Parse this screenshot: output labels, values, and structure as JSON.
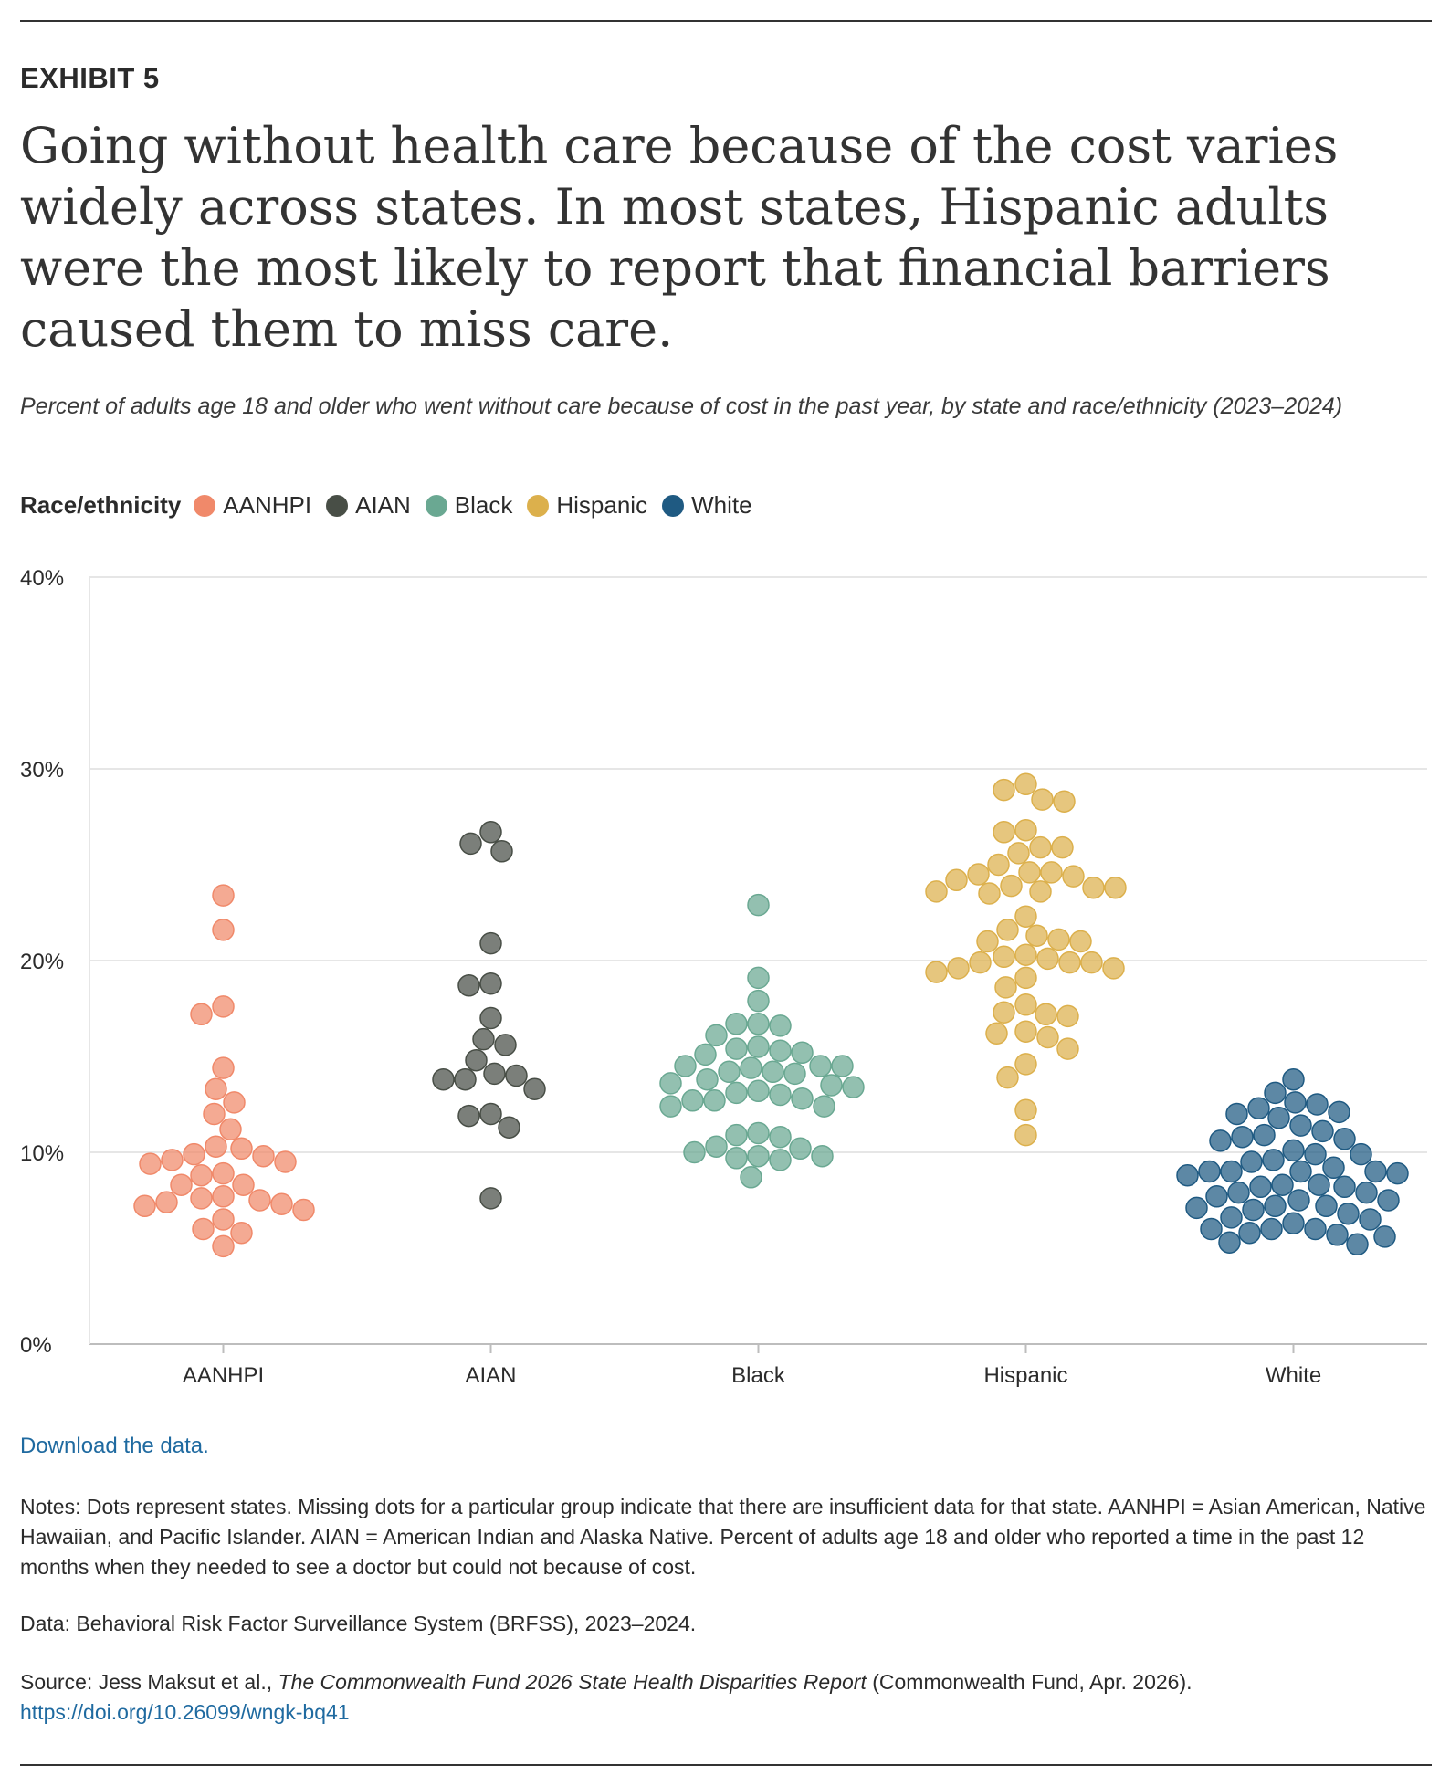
{
  "exhibit_label": "EXHIBIT 5",
  "title": "Going without health care because of the cost varies widely across states. In most states, Hispanic adults were the most likely to report that financial barriers caused them to miss care.",
  "subtitle": "Percent of adults age 18 and older who went without care because of cost in the past year, by state and race/ethnicity (2023–2024)",
  "legend": {
    "title": "Race/ethnicity",
    "items": [
      {
        "label": "AANHPI",
        "color": "#f0896a"
      },
      {
        "label": "AIAN",
        "color": "#484e46"
      },
      {
        "label": "Black",
        "color": "#6aa892"
      },
      {
        "label": "Hispanic",
        "color": "#dcb04c"
      },
      {
        "label": "White",
        "color": "#1f5a82"
      }
    ]
  },
  "chart_data": {
    "type": "scatter",
    "title": "",
    "xlabel": "",
    "ylabel": "",
    "categories": [
      "AANHPI",
      "AIAN",
      "Black",
      "Hispanic",
      "White"
    ],
    "ylim": [
      0,
      40
    ],
    "yticks": [
      "0%",
      "10%",
      "20%",
      "30%",
      "40%"
    ],
    "grid": true,
    "series": [
      {
        "name": "AANHPI",
        "color": "#f0896a",
        "values": [
          23.4,
          21.6,
          17.6,
          17.2,
          14.4,
          13.3,
          12.6,
          12.0,
          11.2,
          10.3,
          10.2,
          9.9,
          9.8,
          9.6,
          9.5,
          9.4,
          8.9,
          8.8,
          8.3,
          8.3,
          7.7,
          7.6,
          7.5,
          7.4,
          7.3,
          7.2,
          7.0,
          6.5,
          6.0,
          5.8,
          5.1
        ]
      },
      {
        "name": "AIAN",
        "color": "#484e46",
        "values": [
          26.7,
          26.1,
          25.7,
          20.9,
          18.8,
          18.7,
          17.0,
          15.9,
          15.6,
          14.8,
          14.1,
          14.0,
          13.8,
          13.8,
          13.3,
          12.0,
          11.9,
          11.3,
          7.6
        ]
      },
      {
        "name": "Black",
        "color": "#6aa892",
        "values": [
          22.9,
          19.1,
          17.9,
          16.7,
          16.7,
          16.6,
          16.1,
          15.5,
          15.4,
          15.3,
          15.2,
          15.1,
          14.5,
          14.5,
          14.5,
          14.4,
          14.2,
          14.2,
          14.1,
          13.8,
          13.6,
          13.5,
          13.4,
          13.2,
          13.1,
          13.0,
          12.8,
          12.7,
          12.7,
          12.4,
          12.4,
          11.0,
          10.9,
          10.8,
          10.3,
          10.2,
          10.0,
          9.8,
          9.8,
          9.7,
          9.6,
          8.7
        ]
      },
      {
        "name": "Hispanic",
        "color": "#dcb04c",
        "values": [
          29.2,
          28.9,
          28.4,
          28.3,
          26.8,
          26.7,
          25.9,
          25.9,
          25.6,
          25.0,
          24.6,
          24.6,
          24.5,
          24.4,
          24.2,
          23.9,
          23.8,
          23.8,
          23.6,
          23.6,
          23.5,
          22.3,
          21.6,
          21.3,
          21.1,
          21.0,
          21.0,
          20.3,
          20.2,
          20.1,
          19.9,
          19.9,
          19.9,
          19.6,
          19.6,
          19.4,
          19.1,
          18.6,
          17.7,
          17.3,
          17.2,
          17.1,
          16.3,
          16.2,
          16.0,
          15.4,
          14.6,
          13.9,
          12.2,
          10.9
        ]
      },
      {
        "name": "White",
        "color": "#1f5a82",
        "values": [
          13.8,
          13.1,
          12.6,
          12.5,
          12.3,
          12.1,
          12.0,
          11.8,
          11.4,
          11.1,
          10.9,
          10.8,
          10.7,
          10.6,
          10.1,
          9.9,
          9.9,
          9.6,
          9.5,
          9.2,
          9.0,
          9.0,
          9.0,
          9.0,
          8.9,
          8.8,
          8.3,
          8.3,
          8.2,
          8.2,
          7.9,
          7.9,
          7.7,
          7.5,
          7.5,
          7.2,
          7.2,
          7.1,
          7.0,
          6.8,
          6.6,
          6.5,
          6.3,
          6.0,
          6.0,
          6.0,
          5.8,
          5.7,
          5.6,
          5.3,
          5.2
        ]
      }
    ]
  },
  "download_text": "Download the data.",
  "notes": "Notes: Dots represent states. Missing dots for a particular group indicate that there are insufficient data for that state. AANHPI = Asian American, Native Hawaiian, and Pacific Islander. AIAN = American Indian and Alaska Native. Percent of adults age 18 and older who reported a time in the past 12 months when they needed to see a doctor but could not because of cost.",
  "data_source": "Data: Behavioral Risk Factor Surveillance System (BRFSS), 2023–2024.",
  "source": {
    "prefix": "Source: Jess Maksut et al., ",
    "publication": "The Commonwealth Fund 2026 State Health Disparities Report",
    "suffix": " (Commonwealth Fund, Apr. 2026).",
    "doi": "https://doi.org/10.26099/wngk-bq41"
  }
}
